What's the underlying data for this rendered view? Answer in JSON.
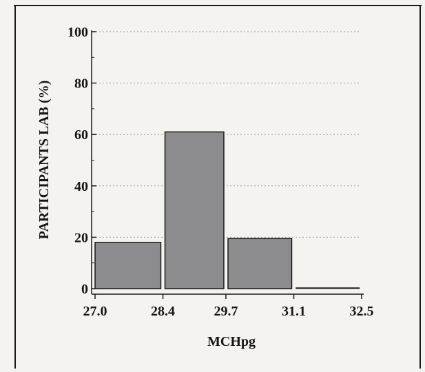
{
  "chart_data": {
    "type": "bar",
    "xlabel": "MCHpg",
    "ylabel": "PARTICIPANTS LAB (%)",
    "x_tick_labels": [
      "27.0",
      "28.4",
      "29.7",
      "31.1",
      "32.5"
    ],
    "y_tick_labels": [
      "0",
      "20",
      "40",
      "60",
      "80",
      "100"
    ],
    "bins": [
      {
        "from": 27.0,
        "to": 28.4,
        "value": 18
      },
      {
        "from": 28.4,
        "to": 29.7,
        "value": 61
      },
      {
        "from": 29.7,
        "to": 31.1,
        "value": 19.5
      },
      {
        "from": 31.1,
        "to": 32.5,
        "value": 0
      }
    ],
    "ylim": [
      0,
      100
    ],
    "grid": true,
    "colors": {
      "bar_fill": "#8c8c8e",
      "bar_stroke": "#1a1a1a",
      "grid": "#9a9a9a",
      "frame": "#1a1a1a"
    }
  }
}
